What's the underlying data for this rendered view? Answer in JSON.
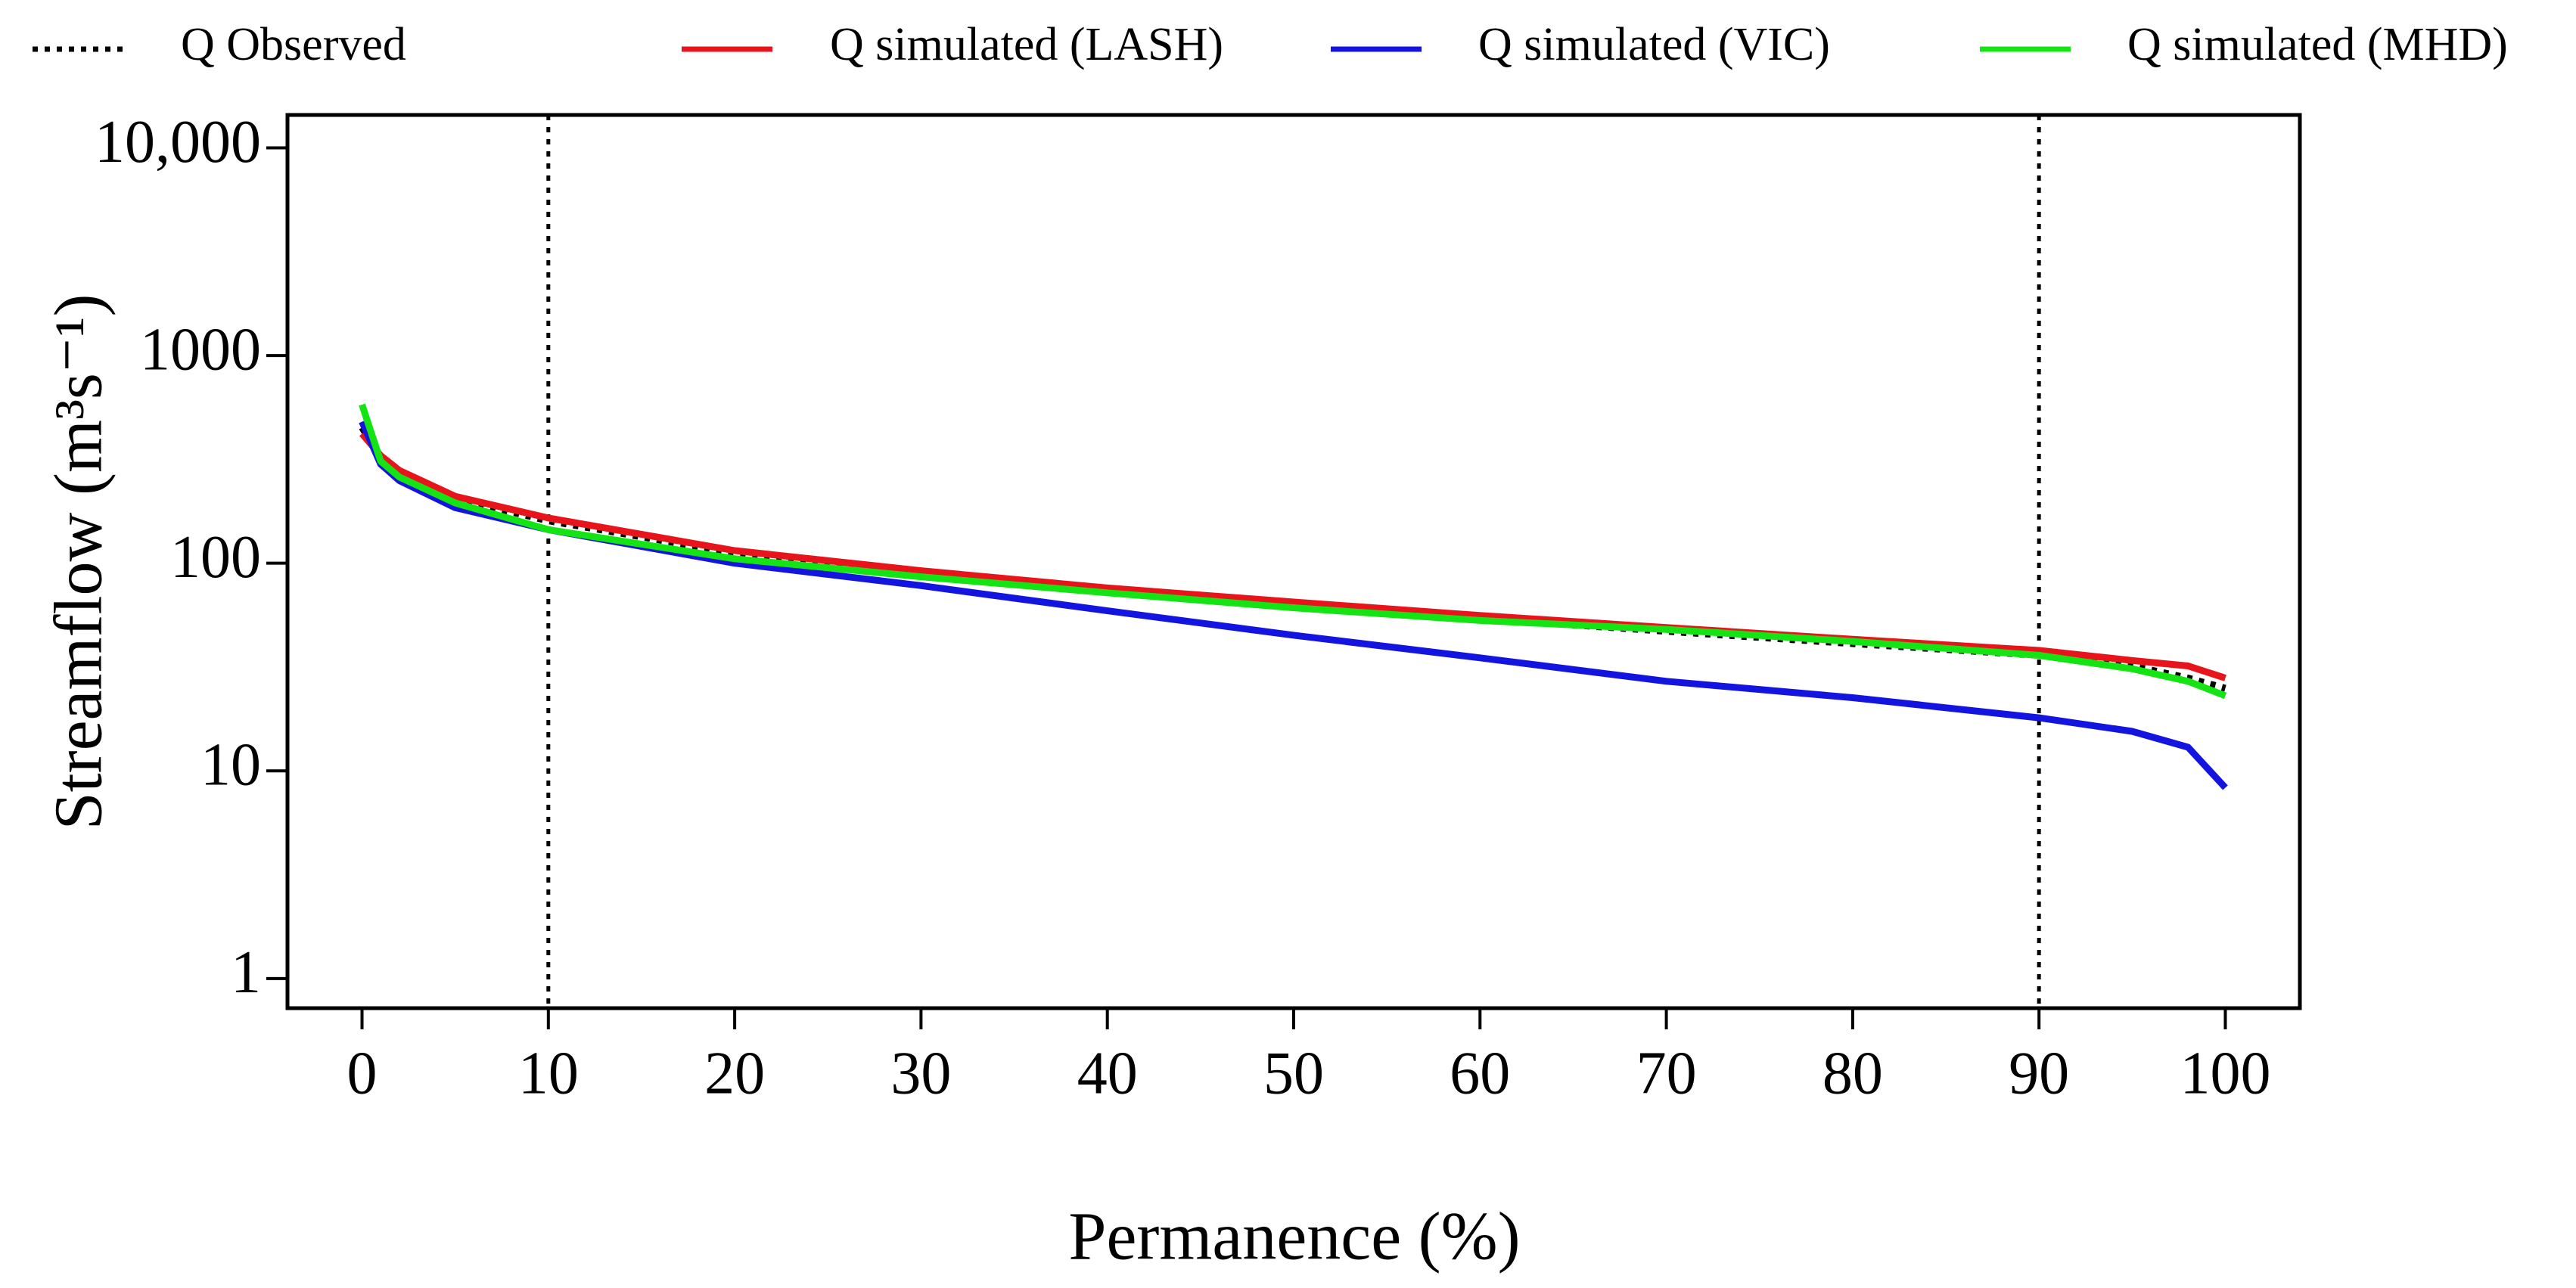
{
  "chart_data": {
    "type": "line",
    "x_label": "Permanence (%)",
    "y_label": "Streamflow (m³s⁻¹)",
    "x": [
      0,
      1,
      2,
      5,
      10,
      20,
      30,
      40,
      50,
      60,
      70,
      80,
      90,
      95,
      98,
      100
    ],
    "series": [
      {
        "name": "Q Observed",
        "color": "#000000",
        "line_style": "dotted",
        "values": [
          450,
          320,
          275,
          205,
          160,
          112,
          90,
          74,
          62,
          54,
          47,
          41,
          36,
          32,
          28,
          25
        ]
      },
      {
        "name": "Q simulated (LASH)",
        "color": "#e8141c",
        "line_style": "solid",
        "values": [
          420,
          330,
          280,
          210,
          165,
          115,
          92,
          76,
          65,
          56,
          49,
          43,
          38,
          34,
          32,
          28
        ]
      },
      {
        "name": "Q simulated (VIC)",
        "color": "#1414e0",
        "line_style": "solid",
        "values": [
          480,
          300,
          250,
          185,
          145,
          100,
          78,
          59,
          45,
          35,
          27,
          22.5,
          18,
          15.5,
          13,
          8.3
        ]
      },
      {
        "name": "Q simulated (MHD)",
        "color": "#14e414",
        "line_style": "solid",
        "values": [
          580,
          310,
          260,
          195,
          145,
          105,
          86,
          72,
          61,
          53,
          48,
          42,
          36,
          31,
          27,
          23
        ]
      }
    ],
    "vlines": [
      10,
      90
    ],
    "xlim": [
      -4,
      104
    ],
    "xticks": [
      0,
      10,
      20,
      30,
      40,
      50,
      60,
      70,
      80,
      90,
      100
    ],
    "ylim": [
      0.72,
      14400
    ],
    "yticks": [
      1,
      10,
      100,
      1000,
      {
        "value": 10000,
        "label": "10,000"
      }
    ],
    "log_y": true,
    "grid": false
  }
}
